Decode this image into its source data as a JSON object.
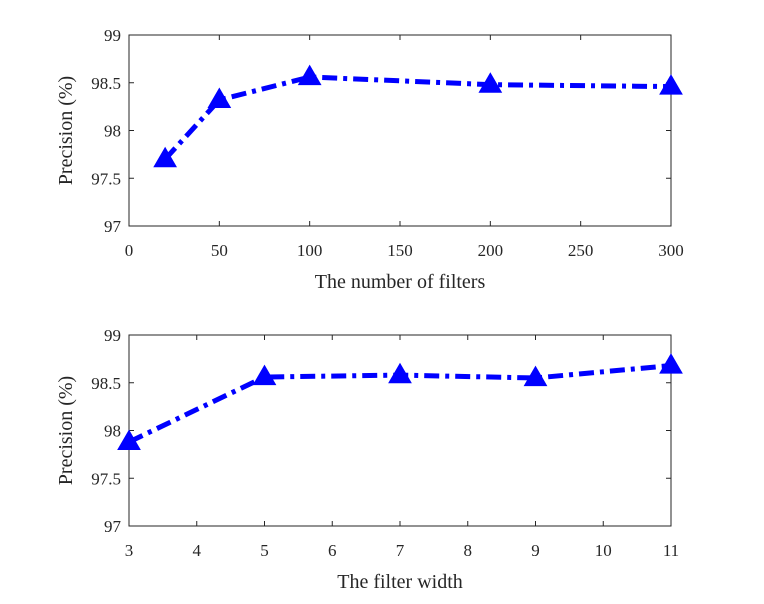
{
  "chart_data": [
    {
      "type": "line",
      "xlabel": "The number of filters",
      "ylabel": "Precision (%)",
      "xlim": [
        0,
        300
      ],
      "ylim": [
        97,
        99
      ],
      "xticks": [
        0,
        50,
        100,
        150,
        200,
        250,
        300
      ],
      "yticks": [
        97,
        97.5,
        98,
        98.5,
        99
      ],
      "xtick_labels": [
        "0",
        "50",
        "100",
        "150",
        "200",
        "250",
        "300"
      ],
      "ytick_labels": [
        "97",
        "97.5",
        "98",
        "98.5",
        "99"
      ],
      "grid": false,
      "series": [
        {
          "x": [
            20,
            50,
            100,
            200,
            300
          ],
          "y": [
            97.7,
            98.32,
            98.56,
            98.48,
            98.46
          ],
          "color": "#0000ff",
          "line_style": "dash-dot",
          "marker": "triangle-up"
        }
      ]
    },
    {
      "type": "line",
      "xlabel": "The filter width",
      "ylabel": "Precision (%)",
      "xlim": [
        3,
        11
      ],
      "ylim": [
        97,
        99
      ],
      "xticks": [
        3,
        4,
        5,
        6,
        7,
        8,
        9,
        10,
        11
      ],
      "yticks": [
        97,
        97.5,
        98,
        98.5,
        99
      ],
      "xtick_labels": [
        "3",
        "4",
        "5",
        "6",
        "7",
        "8",
        "9",
        "10",
        "11"
      ],
      "ytick_labels": [
        "97",
        "97.5",
        "98",
        "98.5",
        "99"
      ],
      "grid": false,
      "series": [
        {
          "x": [
            3,
            5,
            7,
            9,
            11
          ],
          "y": [
            97.88,
            98.56,
            98.58,
            98.55,
            98.68
          ],
          "color": "#0000ff",
          "line_style": "dash-dot",
          "marker": "triangle-up"
        }
      ]
    }
  ]
}
